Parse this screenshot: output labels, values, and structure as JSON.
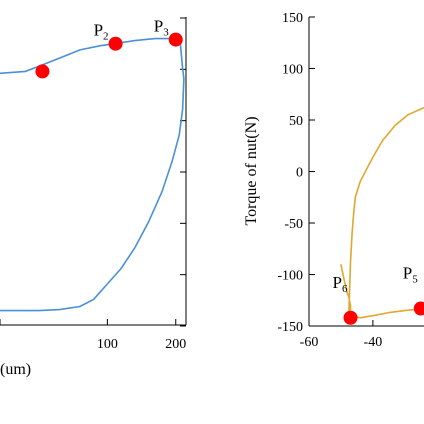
{
  "chart_data": [
    {
      "type": "line",
      "panel": "left",
      "xlabel": "(um)",
      "ylabel": "",
      "x_ticks": [
        "100",
        "200"
      ],
      "xlim": [
        -60,
        215
      ],
      "ylim": [
        -150,
        150
      ],
      "series": [
        {
          "color": "#4a90d9",
          "points": [
            [
              -60,
              95
            ],
            [
              -20,
              97
            ],
            [
              0,
              102
            ],
            [
              30,
              110
            ],
            [
              60,
              118
            ],
            [
              90,
              122
            ],
            [
              110,
              124
            ],
            [
              140,
              127
            ],
            [
              170,
              129
            ],
            [
              190,
              129
            ],
            [
              200,
              128
            ],
            [
              206,
              130
            ],
            [
              210,
              100
            ],
            [
              212,
              90
            ],
            [
              210,
              60
            ],
            [
              205,
              35
            ],
            [
              195,
              10
            ],
            [
              180,
              -20
            ],
            [
              160,
              -50
            ],
            [
              140,
              -75
            ],
            [
              120,
              -95
            ],
            [
              100,
              -110
            ],
            [
              80,
              -125
            ],
            [
              60,
              -132
            ],
            [
              30,
              -135
            ],
            [
              0,
              -136
            ],
            [
              -30,
              -136
            ],
            [
              -60,
              -136
            ]
          ]
        }
      ],
      "markers": [
        {
          "label": "P",
          "sub": "2",
          "x": 112,
          "y": 124
        },
        {
          "label": "P",
          "sub": "3",
          "x": 200,
          "y": 128
        },
        {
          "label": "",
          "sub": "",
          "x": 5,
          "y": 97
        }
      ],
      "marker_color": "#ff0000"
    },
    {
      "type": "line",
      "panel": "right",
      "xlabel": "",
      "ylabel": "Torque of nut(N)",
      "x_ticks": [
        "-60",
        "-40"
      ],
      "y_ticks": [
        "150",
        "100",
        "50",
        "0",
        "-50",
        "-100",
        "-150"
      ],
      "xlim": [
        -60,
        -24
      ],
      "ylim": [
        -150,
        150
      ],
      "series": [
        {
          "color": "#e0a82e",
          "points": [
            [
              -50,
              -90
            ],
            [
              -49,
              -105
            ],
            [
              -48,
              -118
            ],
            [
              -47.5,
              -122
            ],
            [
              -47,
              -130
            ],
            [
              -47,
              -134
            ],
            [
              -47.5,
              -136
            ],
            [
              -47,
              -88
            ],
            [
              -46.5,
              -60
            ],
            [
              -46,
              -40
            ],
            [
              -45.5,
              -25
            ],
            [
              -44,
              -10
            ],
            [
              -42,
              2
            ],
            [
              -40,
              14
            ],
            [
              -37,
              30
            ],
            [
              -33,
              45
            ],
            [
              -29,
              55
            ],
            [
              -24,
              62
            ]
          ]
        },
        {
          "color": "#e0a82e",
          "points": [
            [
              -47,
              -140
            ],
            [
              -44,
              -142
            ],
            [
              -40,
              -140
            ],
            [
              -35,
              -137
            ],
            [
              -30,
              -135
            ],
            [
              -24,
              -133
            ]
          ]
        }
      ],
      "markers": [
        {
          "label": "P",
          "sub": "6",
          "x": -47,
          "y": -142
        },
        {
          "label": "P",
          "sub": "5",
          "x": -25,
          "y": -133
        }
      ],
      "marker_color": "#ff0000"
    }
  ]
}
